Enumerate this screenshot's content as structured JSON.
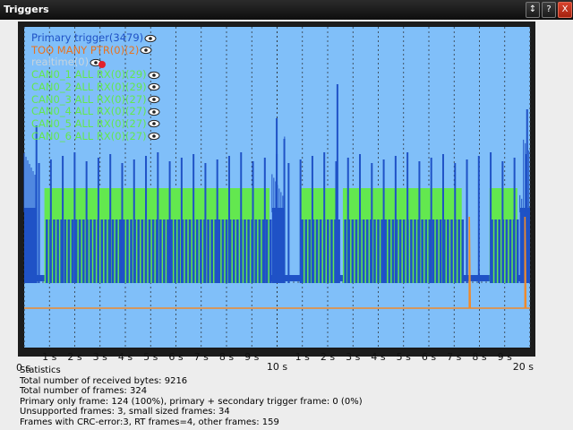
{
  "window": {
    "title": "Triggers",
    "buttons": {
      "sort": "↕",
      "help": "?",
      "close": "X"
    }
  },
  "colors": {
    "background": "#80bff9",
    "primary": "#1f52c6",
    "secondary": "#63e84f",
    "too_many": "#f08a2a",
    "realtime": "#c6d4de",
    "realtime_marker": "#e2222b"
  },
  "legend": [
    {
      "label": "Primary trigger(3479)",
      "color": "#1f52c6",
      "icon": "eye-icon"
    },
    {
      "label": "TOO MANY PTR(0)(2)",
      "color": "#e8731f",
      "icon": "eye-icon"
    },
    {
      "label": "realtime(0)",
      "color": "#c6d4de",
      "icon": "eye-red-dot-icon"
    },
    {
      "label": "CAN0_1 ALL RX(0)(29)",
      "color": "#63e84f",
      "icon": "eye-icon"
    },
    {
      "label": "CAN0_2 ALL RX(0)(29)",
      "color": "#63e84f",
      "icon": "eye-icon"
    },
    {
      "label": "CAN0_3 ALL RX(0)(27)",
      "color": "#63e84f",
      "icon": "eye-icon"
    },
    {
      "label": "CAN0_4 ALL RX(0)(27)",
      "color": "#63e84f",
      "icon": "eye-icon"
    },
    {
      "label": "CAN0_5 ALL RX(0)(27)",
      "color": "#63e84f",
      "icon": "eye-icon"
    },
    {
      "label": "CAN0_6 ALL RX(0)(27)",
      "color": "#63e84f",
      "icon": "eye-icon"
    }
  ],
  "chart_data": {
    "type": "area",
    "x_range_s": [
      0,
      20
    ],
    "ticks": [
      {
        "t": 0,
        "label": "0 s",
        "major": true
      },
      {
        "t": 1,
        "label": "1 s"
      },
      {
        "t": 2,
        "label": "2 s"
      },
      {
        "t": 3,
        "label": "3 s"
      },
      {
        "t": 4,
        "label": "4 s"
      },
      {
        "t": 5,
        "label": "5 s"
      },
      {
        "t": 6,
        "label": "6 s"
      },
      {
        "t": 7,
        "label": "7 s"
      },
      {
        "t": 8,
        "label": "8 s"
      },
      {
        "t": 9,
        "label": "9 s"
      },
      {
        "t": 10,
        "label": "10 s",
        "major": true
      },
      {
        "t": 11,
        "label": "1 s"
      },
      {
        "t": 12,
        "label": "2 s"
      },
      {
        "t": 13,
        "label": "3 s"
      },
      {
        "t": 14,
        "label": "4 s"
      },
      {
        "t": 15,
        "label": "5 s"
      },
      {
        "t": 16,
        "label": "6 s"
      },
      {
        "t": 17,
        "label": "7 s"
      },
      {
        "t": 18,
        "label": "8 s"
      },
      {
        "t": 19,
        "label": "9 s"
      },
      {
        "t": 20,
        "label": "20 s",
        "major": true
      }
    ],
    "grid": true,
    "secondary_active_s": [
      [
        0.8,
        9.7
      ],
      [
        10.9,
        12.4
      ],
      [
        12.6,
        17.3
      ],
      [
        18.4,
        19.5
      ]
    ],
    "primary_dense_s": [
      [
        0,
        0.5
      ],
      [
        9.8,
        10.3
      ],
      [
        19.6,
        20
      ]
    ],
    "too_many_markers_s": [
      17.6,
      19.8
    ]
  },
  "statistics": {
    "heading": "Statistics",
    "lines": [
      "Total number of received bytes: 9216",
      "Total number of frames: 324",
      "Primary only frame: 124 (100%), primary + secondary trigger frame: 0 (0%)",
      "Unsupported frames: 3, small sized frames: 34",
      "Frames with CRC-error:3, RT frames=4, other frames: 159"
    ]
  }
}
